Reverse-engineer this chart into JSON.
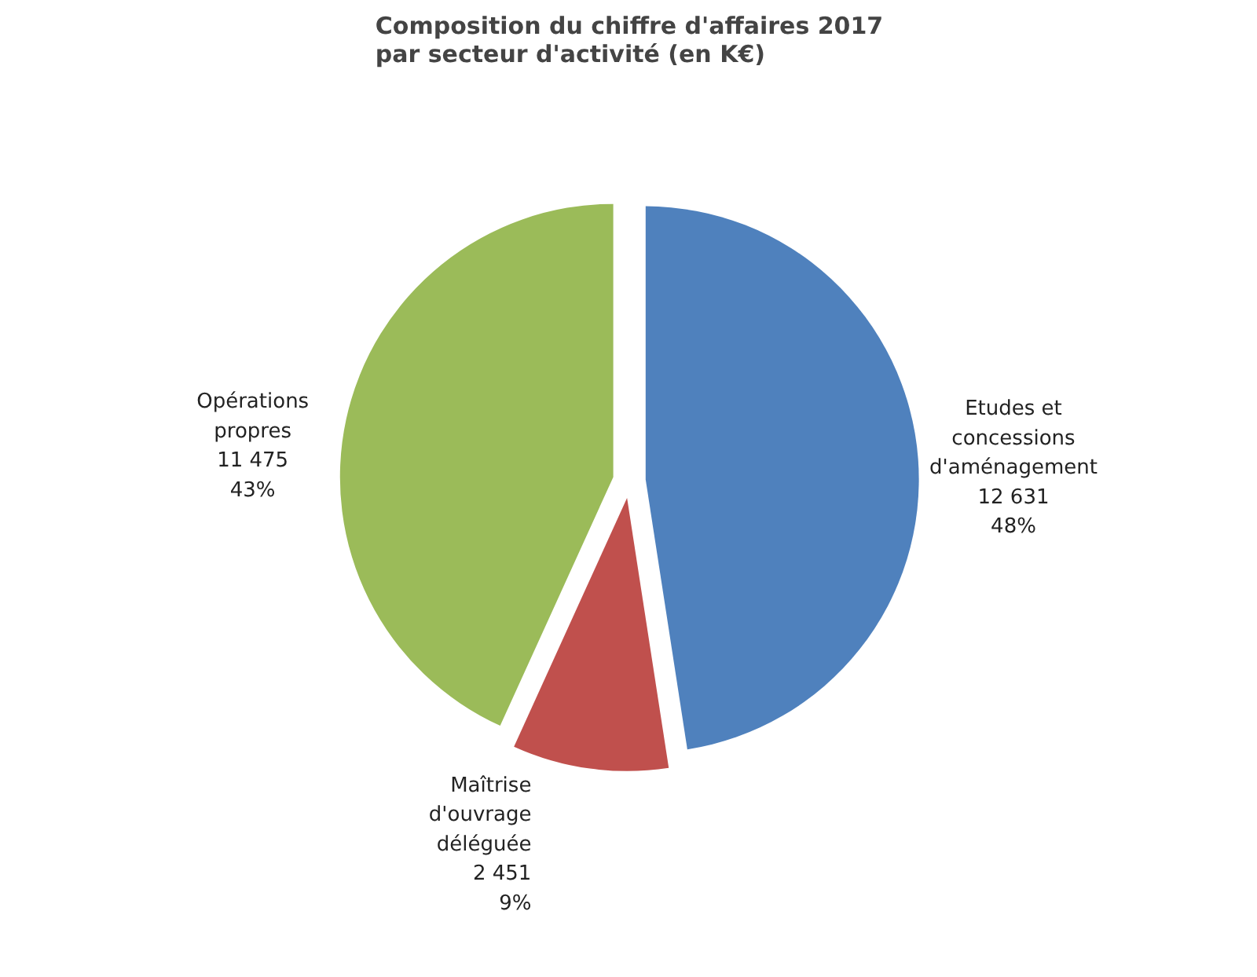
{
  "chart_data": {
    "type": "pie",
    "title": "Composition du chiffre d'affaires 2017 par secteur d'activité (en K€)",
    "categories": [
      "Etudes et concessions d'aménagement",
      "Maîtrise d'ouvrage déléguée",
      "Opérations propres"
    ],
    "values": [
      12631,
      2451,
      11475
    ],
    "colors": [
      "#4f81bd",
      "#c0504d",
      "#9bbb59"
    ],
    "value_labels": [
      "12 631\n48%",
      "2 451\n9%",
      "11 475\n43%"
    ]
  }
}
